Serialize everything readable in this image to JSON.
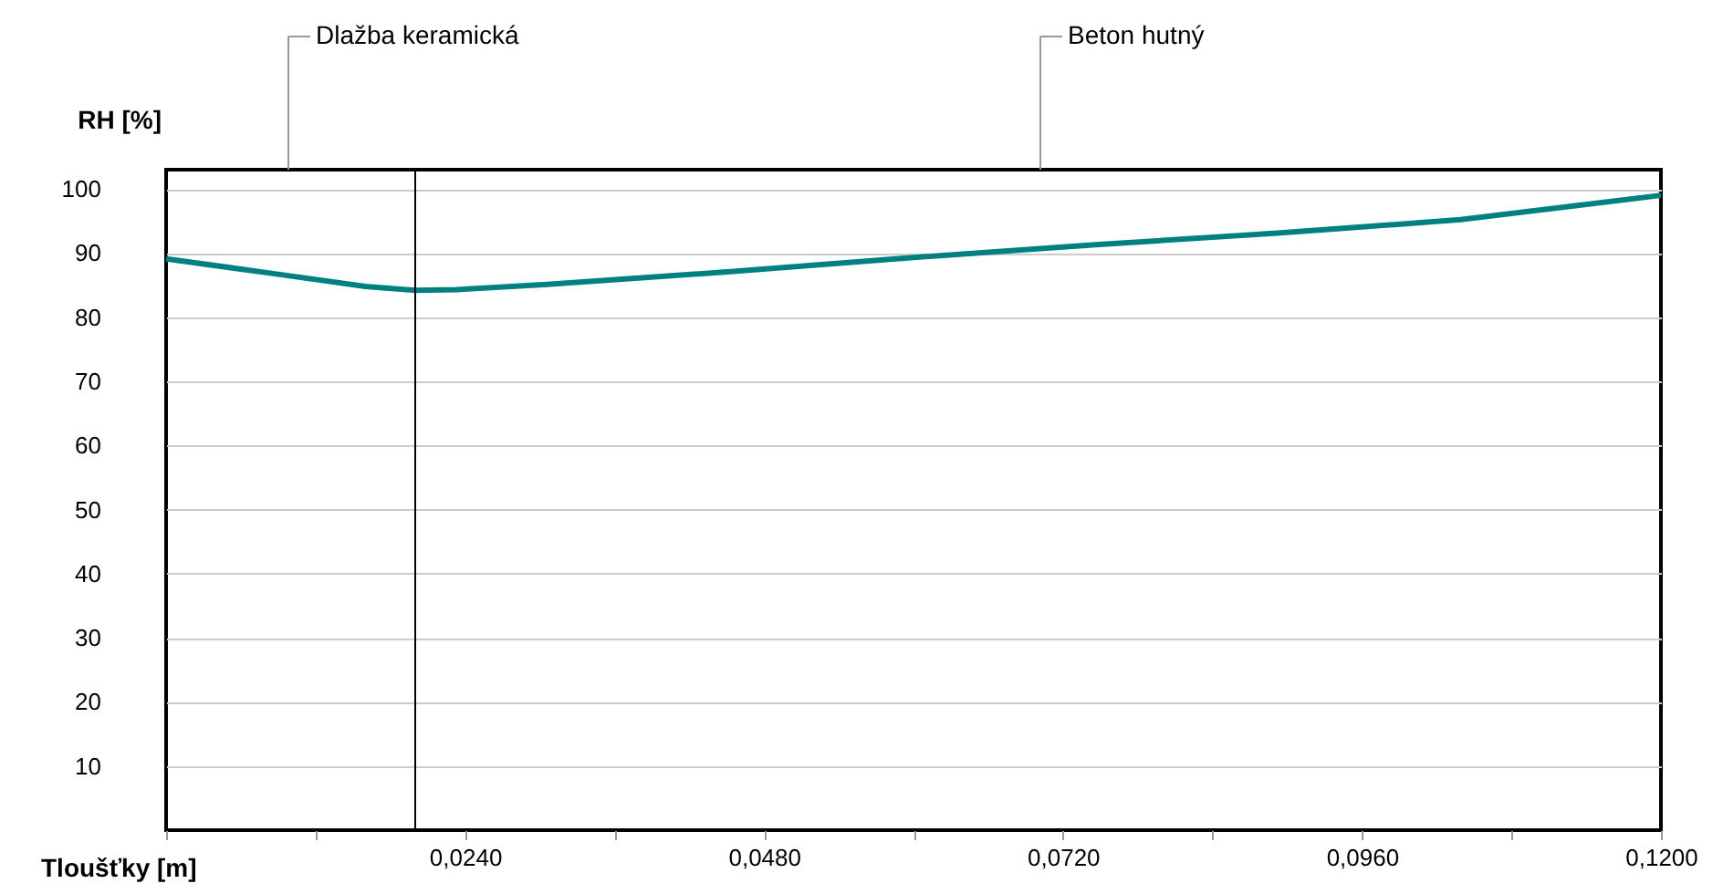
{
  "chart_data": {
    "type": "line",
    "xlabel": "Tloušťky [m]",
    "ylabel": "RH [%]",
    "x": [
      0,
      0.0086,
      0.016,
      0.02,
      0.0233,
      0.0306,
      0.0453,
      0.06,
      0.0746,
      0.0892,
      0.1039,
      0.12
    ],
    "series": [
      {
        "color": "#008080",
        "values": [
          89.1,
          86.8,
          84.8,
          84.2,
          84.3,
          85.1,
          87.1,
          89.3,
          91.3,
          93.1,
          95.2,
          99
        ]
      }
    ],
    "xlim": [
      0,
      0.12
    ],
    "ylim": [
      0,
      103
    ],
    "xticks": [
      {
        "value": 0,
        "label": null
      },
      {
        "value": 0.012,
        "label": null
      },
      {
        "value": 0.024,
        "label": "0,0240"
      },
      {
        "value": 0.036,
        "label": null
      },
      {
        "value": 0.048,
        "label": "0,0480"
      },
      {
        "value": 0.06,
        "label": null
      },
      {
        "value": 0.072,
        "label": "0,0720"
      },
      {
        "value": 0.084,
        "label": null
      },
      {
        "value": 0.096,
        "label": "0,0960"
      },
      {
        "value": 0.108,
        "label": null
      },
      {
        "value": 0.12,
        "label": "0,1200"
      }
    ],
    "yticks": [
      10,
      20,
      30,
      40,
      50,
      60,
      70,
      80,
      90,
      100
    ],
    "grid": "y",
    "marker": "none",
    "line_style": "solid",
    "ref_lines": [
      {
        "axis": "x",
        "value": 0.02,
        "color": "#000000"
      }
    ],
    "annotations": [
      "Dlažba keramická",
      "Beton hutný"
    ]
  }
}
